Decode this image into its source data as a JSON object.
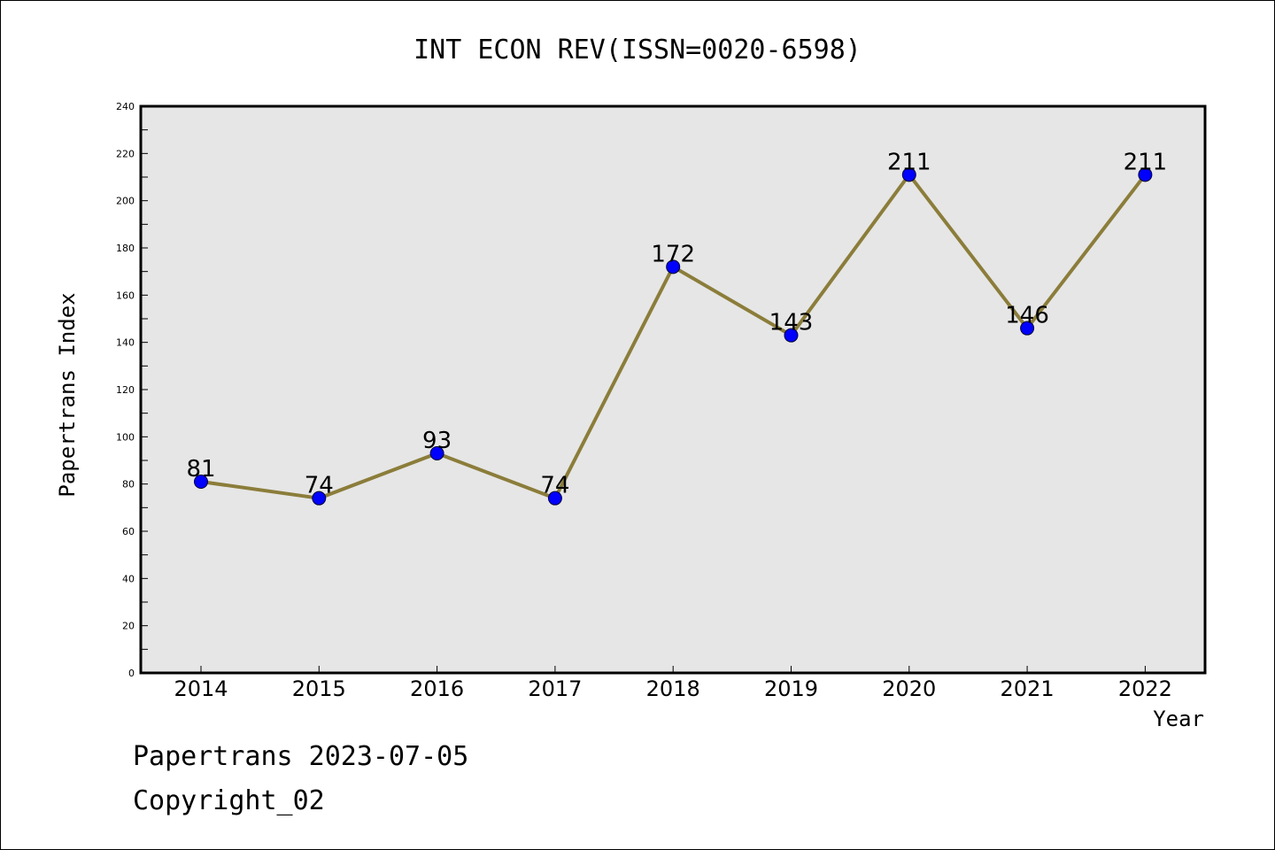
{
  "chart_data": {
    "type": "line",
    "title": "INT ECON REV(ISSN=0020-6598)",
    "xlabel": "Year",
    "ylabel": "Papertrans Index",
    "x": [
      "2014",
      "2015",
      "2016",
      "2017",
      "2018",
      "2019",
      "2020",
      "2021",
      "2022"
    ],
    "values": [
      81,
      74,
      93,
      74,
      172,
      143,
      211,
      146,
      211
    ],
    "ylim": [
      0,
      240
    ],
    "yticks": [
      0,
      20,
      40,
      60,
      80,
      100,
      120,
      140,
      160,
      180,
      200,
      220,
      240
    ],
    "grid": false,
    "line_color": "#8b7d3a",
    "marker_color": "#0000ff",
    "plot_background": "#e6e6e6"
  },
  "footer": {
    "line1": "Papertrans 2023-07-05",
    "line2": "Copyright_02"
  }
}
